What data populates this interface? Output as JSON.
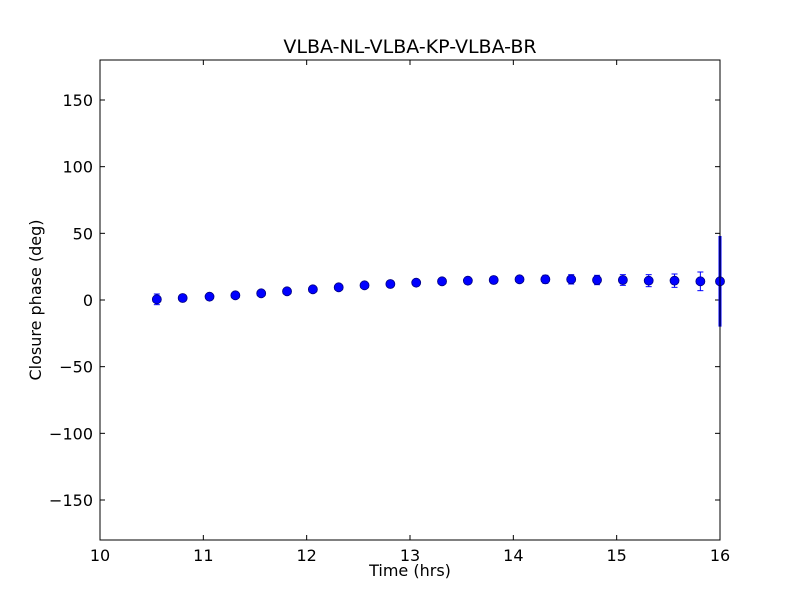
{
  "chart_data": {
    "type": "scatter",
    "title": "VLBA-NL-VLBA-KP-VLBA-BR",
    "xlabel": "Time (hrs)",
    "ylabel": "Closure phase (deg)",
    "xlim": [
      10,
      16
    ],
    "ylim": [
      -180,
      180
    ],
    "xticks": [
      10,
      11,
      12,
      13,
      14,
      15,
      16
    ],
    "xtick_labels": [
      "10",
      "11",
      "12",
      "13",
      "14",
      "15",
      "16"
    ],
    "yticks": [
      150,
      100,
      50,
      0,
      -50,
      -100,
      -150
    ],
    "ytick_labels": [
      "150",
      "100",
      "50",
      "0",
      "−50",
      "−100",
      "−150"
    ],
    "grid": false,
    "marker": "circle",
    "errorbars": true,
    "color": "#0000ff",
    "series": [
      {
        "x": [
          10.55,
          10.8,
          11.06,
          11.31,
          11.56,
          11.81,
          12.06,
          12.31,
          12.56,
          12.81,
          13.06,
          13.31,
          13.56,
          13.81,
          14.06,
          14.31,
          14.56,
          14.81,
          15.06,
          15.31,
          15.56,
          15.81,
          16.0
        ],
        "y": [
          0.5,
          1.5,
          2.5,
          3.5,
          5.0,
          6.5,
          8.0,
          9.5,
          11.0,
          12.0,
          13.0,
          14.0,
          14.5,
          15.0,
          15.5,
          15.5,
          15.5,
          15.0,
          15.0,
          14.5,
          14.5,
          14.0,
          14.0
        ],
        "yerr": [
          4.0,
          1.5,
          1.5,
          1.5,
          1.5,
          1.5,
          1.5,
          1.5,
          1.5,
          2.0,
          2.0,
          2.5,
          2.5,
          2.5,
          2.5,
          3.0,
          3.5,
          3.5,
          4.0,
          4.5,
          5.0,
          7.0,
          34.0
        ]
      }
    ]
  }
}
